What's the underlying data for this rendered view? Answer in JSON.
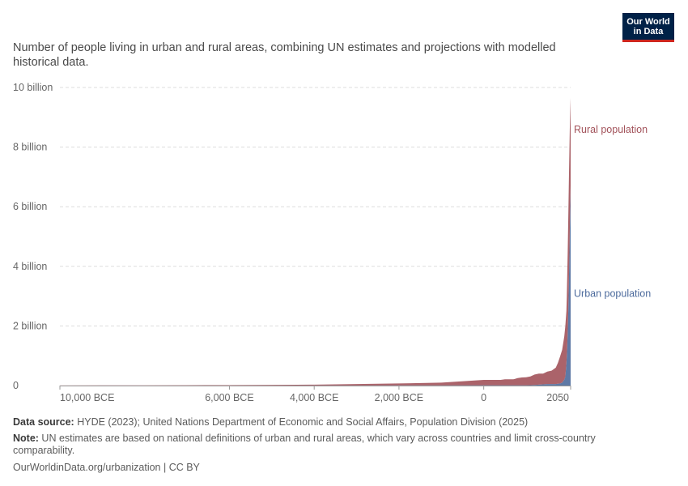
{
  "subtitle": "Number of people living in urban and rural areas, combining UN estimates and projections with modelled historical data.",
  "logo": {
    "line1": "Our World",
    "line2": "in Data"
  },
  "footer": {
    "source_label": "Data source:",
    "source_text": " HYDE (2023); United Nations Department of Economic and Social Affairs, Population Division (2025)",
    "note_label": "Note:",
    "note_text": " UN estimates are based on national definitions of urban and rural areas, which vary across countries and limit cross-country comparability.",
    "url": "OurWorldinData.org/urbanization | CC BY"
  },
  "chart_data": {
    "type": "area",
    "stacked": true,
    "xlabel": "",
    "ylabel": "",
    "ylim": [
      0,
      10000000000
    ],
    "y_ticks": [
      0,
      2000000000,
      4000000000,
      6000000000,
      8000000000,
      10000000000
    ],
    "y_tick_labels": [
      "0",
      "2 billion",
      "4 billion",
      "6 billion",
      "8 billion",
      "10 billion"
    ],
    "x_ticks": [
      -10000,
      -6000,
      -4000,
      -2000,
      0,
      2050
    ],
    "x_tick_labels": [
      "10,000 BCE",
      "6,000 BCE",
      "4,000 BCE",
      "2,000 BCE",
      "0",
      "2050"
    ],
    "grid": true,
    "x": [
      -10000,
      -9000,
      -8000,
      -7000,
      -6000,
      -5000,
      -4000,
      -3000,
      -2000,
      -1000,
      0,
      100,
      200,
      300,
      400,
      500,
      600,
      700,
      800,
      900,
      1000,
      1100,
      1200,
      1300,
      1400,
      1500,
      1600,
      1700,
      1750,
      1800,
      1850,
      1900,
      1925,
      1950,
      1960,
      1970,
      1980,
      1990,
      2000,
      2010,
      2020,
      2030,
      2040,
      2050
    ],
    "series": [
      {
        "name": "Urban population",
        "color": "#4c6a9c",
        "values": [
          100000,
          150000,
          300000,
          500000,
          800000,
          1500000,
          2500000,
          4000000,
          6000000,
          8000000,
          10000000,
          10000000,
          10000000,
          10000000,
          10000000,
          10000000,
          10000000,
          10000000,
          10000000,
          10000000,
          10000000,
          15000000,
          20000000,
          30000000,
          40000000,
          50000000,
          50000000,
          50000000,
          60000000,
          70000000,
          100000000,
          200000000,
          300000000,
          750000000,
          1000000000,
          1350000000,
          1750000000,
          2250000000,
          2850000000,
          3600000000,
          4350000000,
          5200000000,
          6000000000,
          6700000000
        ]
      },
      {
        "name": "Rural population",
        "color": "#a2525a",
        "values": [
          4400000,
          5500000,
          7000000,
          10000000,
          14000000,
          20000000,
          28000000,
          46000000,
          64000000,
          92000000,
          180000000,
          180000000,
          180000000,
          180000000,
          180000000,
          200000000,
          200000000,
          200000000,
          240000000,
          260000000,
          270000000,
          290000000,
          350000000,
          370000000,
          360000000,
          420000000,
          450000000,
          550000000,
          700000000,
          900000000,
          1100000000,
          1450000000,
          1700000000,
          1750000000,
          2000000000,
          2350000000,
          2650000000,
          3000000000,
          3250000000,
          3400000000,
          3450000000,
          3400000000,
          3150000000,
          2950000000
        ]
      }
    ],
    "series_labels": [
      "Rural population",
      "Urban population"
    ]
  }
}
